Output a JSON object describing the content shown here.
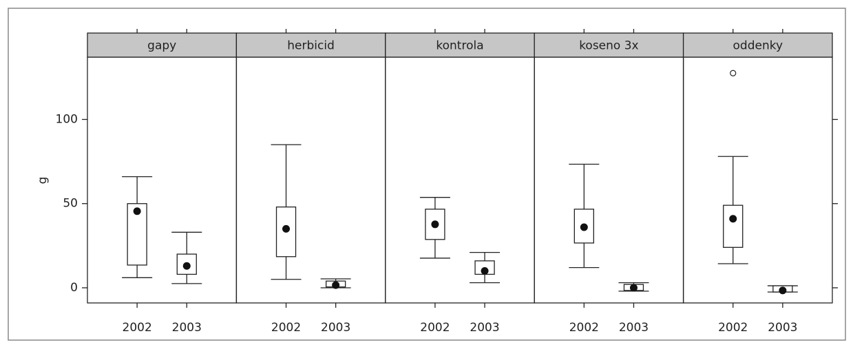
{
  "chart_data": {
    "type": "box",
    "ylabel": "g",
    "categories": [
      "2002",
      "2003"
    ],
    "ylim": [
      -9,
      137
    ],
    "yticks": [
      0,
      50,
      100
    ],
    "box_color": "#ffffff",
    "median_color": "#111111",
    "panels": [
      {
        "name": "gapy",
        "boxes": [
          {
            "whislo": 6,
            "q1": 13.5,
            "med": 45.5,
            "q3": 50,
            "whishi": 66
          },
          {
            "whislo": 2.5,
            "q1": 8,
            "med": 13,
            "q3": 20,
            "whishi": 33
          }
        ]
      },
      {
        "name": "herbicid",
        "boxes": [
          {
            "whislo": 5,
            "q1": 18.5,
            "med": 35,
            "q3": 48,
            "whishi": 85
          },
          {
            "whislo": 0,
            "q1": 0.5,
            "med": 1.6,
            "q3": 4,
            "whishi": 5.3
          }
        ]
      },
      {
        "name": "kontrola",
        "boxes": [
          {
            "whislo": 17.6,
            "q1": 28.7,
            "med": 37.7,
            "q3": 46.7,
            "whishi": 53.7
          },
          {
            "whislo": 3,
            "q1": 8,
            "med": 10,
            "q3": 16,
            "whishi": 21
          }
        ]
      },
      {
        "name": "koseno 3x",
        "boxes": [
          {
            "whislo": 12,
            "q1": 26.6,
            "med": 36,
            "q3": 46.7,
            "whishi": 73.4
          },
          {
            "whislo": -2,
            "q1": -1.6,
            "med": 0,
            "q3": 2,
            "whishi": 3
          }
        ]
      },
      {
        "name": "oddenky",
        "boxes": [
          {
            "whislo": 14.3,
            "q1": 24,
            "med": 41,
            "q3": 49,
            "whishi": 78,
            "outliers": [
              127.5
            ]
          },
          {
            "whislo": -2.5,
            "q1": -2.5,
            "med": -1.6,
            "q3": 1.2,
            "whishi": 1.2
          }
        ]
      }
    ]
  }
}
